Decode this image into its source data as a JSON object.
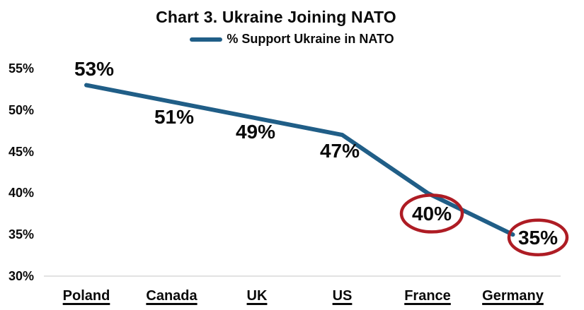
{
  "chart_data": {
    "type": "line",
    "title": "Chart 3. Ukraine Joining NATO",
    "legend_label": "% Support Ukraine in NATO",
    "legend_position": "top",
    "categories": [
      "Poland",
      "Canada",
      "UK",
      "US",
      "France",
      "Germany"
    ],
    "values": [
      53,
      51,
      49,
      47,
      40,
      35
    ],
    "value_labels": [
      "53%",
      "51%",
      "49%",
      "47%",
      "40%",
      "35%"
    ],
    "yticks": [
      55,
      50,
      45,
      40,
      35,
      30
    ],
    "ytick_labels": [
      "55%",
      "50%",
      "45%",
      "40%",
      "35%",
      "30%"
    ],
    "ylim": [
      30,
      55
    ],
    "xlabel": "",
    "ylabel": "",
    "grid": false,
    "circled": [
      "France",
      "Germany"
    ],
    "line_color": "#205E87",
    "annotation_color": "#AE1C24",
    "axis_line_color": "#D9D9D9",
    "text_color": "#0A0A0A"
  }
}
